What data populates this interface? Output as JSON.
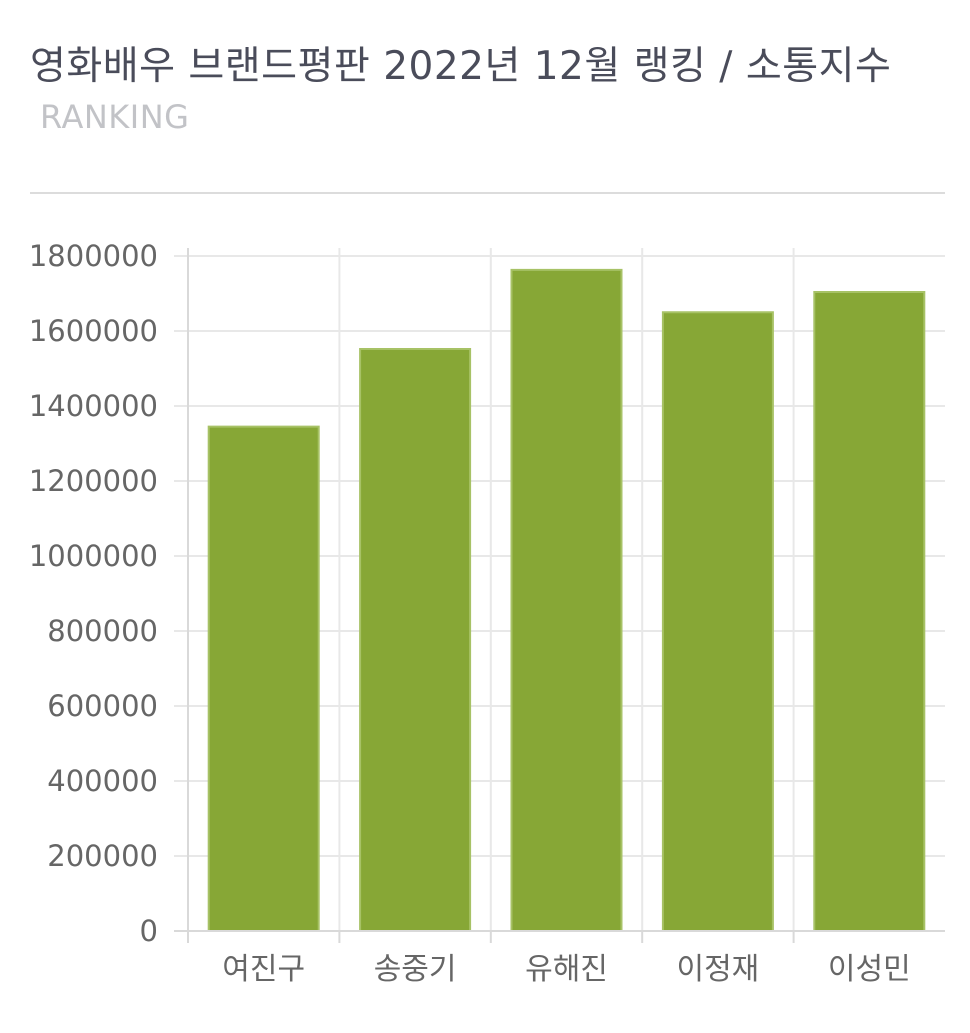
{
  "header": {
    "title": "영화배우 브랜드평판 2022년 12월 랭킹 / 소통지수",
    "subtitle": "RANKING"
  },
  "chart_data": {
    "type": "bar",
    "title": "영화배우 브랜드평판 2022년 12월 랭킹 / 소통지수",
    "categories": [
      "여진구",
      "송중기",
      "유해진",
      "이정재",
      "이성민"
    ],
    "values": [
      1345000,
      1552000,
      1763000,
      1650000,
      1704000
    ],
    "ylim": [
      0,
      1800000
    ],
    "yticks": [
      "0",
      "200000",
      "400000",
      "600000",
      "800000",
      "1000000",
      "1200000",
      "1400000",
      "1600000",
      "1800000"
    ],
    "xlabel": "",
    "ylabel": "",
    "grid": true,
    "legend": "none",
    "bar_color": "#87a736",
    "bar_edge_color": "#a7c266",
    "grid_color": "#e8e8e8",
    "axis_color": "#d9d9d9"
  }
}
